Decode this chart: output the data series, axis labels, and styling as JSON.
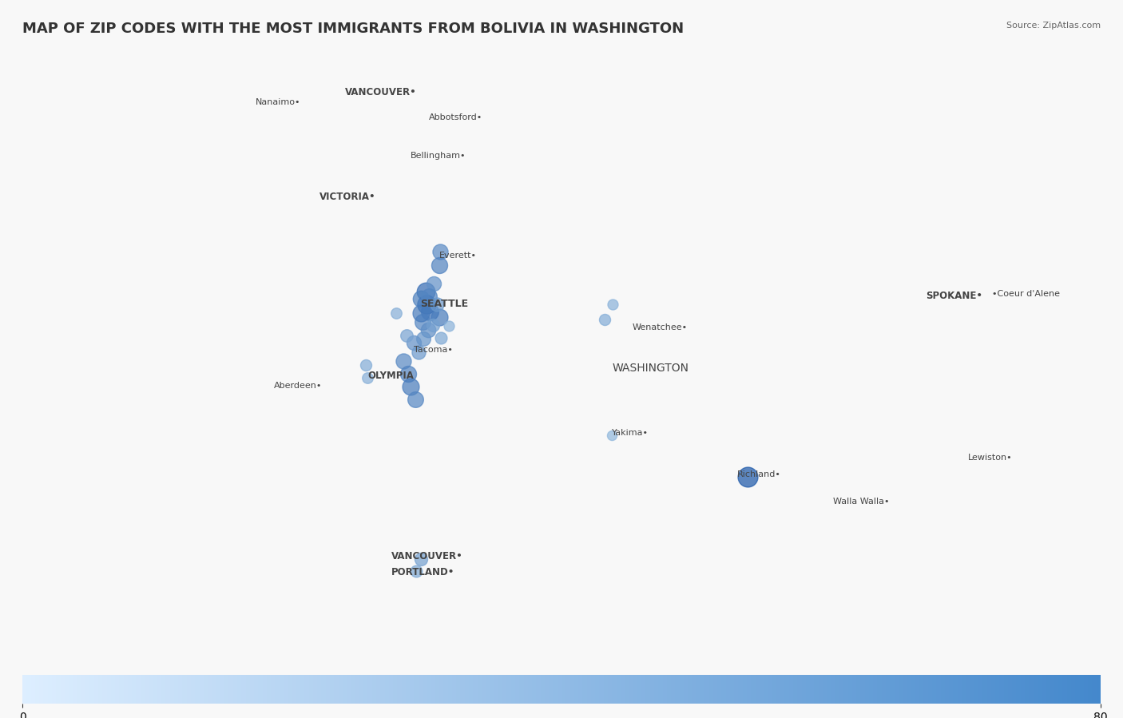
{
  "title": "MAP OF ZIP CODES WITH THE MOST IMMIGRANTS FROM BOLIVIA IN WASHINGTON",
  "source_text": "Source: ZipAtlas.com",
  "colorbar_min": 0,
  "colorbar_max": 80,
  "colorbar_color_start": "#ddeeff",
  "colorbar_color_end": "#4488cc",
  "background_color": "#f0f4f8",
  "map_bg_color": "#dce9f5",
  "washington_fill": "#cce0f0",
  "washington_edge": "#aabccc",
  "title_fontsize": 13,
  "bubble_color": "#4477cc",
  "bubble_alpha": 0.65,
  "city_labels": [
    {
      "name": "VANCOUVER•",
      "lon": -122.67,
      "lat": 45.64,
      "fontsize": 8.5,
      "bold": true
    },
    {
      "name": "PORTLAND•",
      "lon": -122.67,
      "lat": 45.52,
      "fontsize": 8.5,
      "bold": true
    },
    {
      "name": "Nanaimo•",
      "lon": -124.0,
      "lat": 49.17,
      "fontsize": 8,
      "bold": false
    },
    {
      "name": "VANCOUVER•",
      "lon": -123.12,
      "lat": 49.24,
      "fontsize": 8.5,
      "bold": true
    },
    {
      "name": "Abbotsford•",
      "lon": -122.3,
      "lat": 49.05,
      "fontsize": 8,
      "bold": false
    },
    {
      "name": "Bellingham•",
      "lon": -122.48,
      "lat": 48.75,
      "fontsize": 8,
      "bold": false
    },
    {
      "name": "VICTORIA•",
      "lon": -123.37,
      "lat": 48.43,
      "fontsize": 8.5,
      "bold": true
    },
    {
      "name": "Everett•",
      "lon": -122.2,
      "lat": 47.98,
      "fontsize": 8,
      "bold": false
    },
    {
      "name": "SEATTLE",
      "lon": -122.38,
      "lat": 47.6,
      "fontsize": 9,
      "bold": true
    },
    {
      "name": "Aberdeen•",
      "lon": -123.82,
      "lat": 46.97,
      "fontsize": 8,
      "bold": false
    },
    {
      "name": "Tacoma•",
      "lon": -122.45,
      "lat": 47.25,
      "fontsize": 8,
      "bold": false
    },
    {
      "name": "OLYMPIA",
      "lon": -122.9,
      "lat": 47.04,
      "fontsize": 8.5,
      "bold": true
    },
    {
      "name": "Wenatchee•",
      "lon": -120.31,
      "lat": 47.42,
      "fontsize": 8,
      "bold": false
    },
    {
      "name": "WASHINGTON",
      "lon": -120.5,
      "lat": 47.1,
      "fontsize": 10,
      "bold": false
    },
    {
      "name": "Yakima•",
      "lon": -120.51,
      "lat": 46.6,
      "fontsize": 8,
      "bold": false
    },
    {
      "name": "SPOKANE•",
      "lon": -117.43,
      "lat": 47.66,
      "fontsize": 8.5,
      "bold": true
    },
    {
      "name": "•Coeur d'Alene",
      "lon": -116.78,
      "lat": 47.68,
      "fontsize": 8,
      "bold": false
    },
    {
      "name": "Lewiston•",
      "lon": -117.02,
      "lat": 46.41,
      "fontsize": 8,
      "bold": false
    },
    {
      "name": "Richland•",
      "lon": -119.28,
      "lat": 46.28,
      "fontsize": 8,
      "bold": false
    },
    {
      "name": "Walla Walla•",
      "lon": -118.34,
      "lat": 46.07,
      "fontsize": 8,
      "bold": false
    }
  ],
  "bubbles": [
    {
      "lon": -122.19,
      "lat": 48.03,
      "value": 45
    },
    {
      "lon": -122.2,
      "lat": 47.92,
      "value": 50
    },
    {
      "lon": -122.33,
      "lat": 47.72,
      "value": 65
    },
    {
      "lon": -122.32,
      "lat": 47.62,
      "value": 70
    },
    {
      "lon": -122.29,
      "lat": 47.56,
      "value": 60
    },
    {
      "lon": -122.2,
      "lat": 47.52,
      "value": 55
    },
    {
      "lon": -122.36,
      "lat": 47.48,
      "value": 48
    },
    {
      "lon": -122.31,
      "lat": 47.42,
      "value": 42
    },
    {
      "lon": -122.45,
      "lat": 47.32,
      "value": 40
    },
    {
      "lon": -122.35,
      "lat": 47.35,
      "value": 38
    },
    {
      "lon": -122.4,
      "lat": 47.25,
      "value": 35
    },
    {
      "lon": -122.55,
      "lat": 47.18,
      "value": 45
    },
    {
      "lon": -122.5,
      "lat": 47.08,
      "value": 50
    },
    {
      "lon": -122.48,
      "lat": 46.98,
      "value": 55
    },
    {
      "lon": -122.43,
      "lat": 46.88,
      "value": 48
    },
    {
      "lon": -122.38,
      "lat": 47.66,
      "value": 52
    },
    {
      "lon": -122.26,
      "lat": 47.46,
      "value": 30
    },
    {
      "lon": -122.18,
      "lat": 47.36,
      "value": 25
    },
    {
      "lon": -122.62,
      "lat": 47.55,
      "value": 20
    },
    {
      "lon": -122.25,
      "lat": 47.78,
      "value": 40
    },
    {
      "lon": -120.58,
      "lat": 47.5,
      "value": 22
    },
    {
      "lon": -120.5,
      "lat": 47.62,
      "value": 18
    },
    {
      "lon": -120.51,
      "lat": 46.6,
      "value": 15
    },
    {
      "lon": -119.18,
      "lat": 46.28,
      "value": 80
    },
    {
      "lon": -122.38,
      "lat": 47.55,
      "value": 55
    },
    {
      "lon": -122.3,
      "lat": 47.68,
      "value": 48
    },
    {
      "lon": -122.22,
      "lat": 47.62,
      "value": 35
    },
    {
      "lon": -122.52,
      "lat": 47.38,
      "value": 28
    },
    {
      "lon": -122.1,
      "lat": 47.45,
      "value": 18
    },
    {
      "lon": -122.9,
      "lat": 47.05,
      "value": 20
    },
    {
      "lon": -122.92,
      "lat": 47.15,
      "value": 22
    },
    {
      "lon": -122.38,
      "lat": 45.64,
      "value": 30
    },
    {
      "lon": -122.42,
      "lat": 45.55,
      "value": 25
    }
  ],
  "wa_lon_min": -124.8,
  "wa_lon_max": -116.9,
  "wa_lat_min": 45.5,
  "wa_lat_max": 49.1,
  "fig_extent": [
    -126.5,
    -115.5,
    44.8,
    49.7
  ]
}
